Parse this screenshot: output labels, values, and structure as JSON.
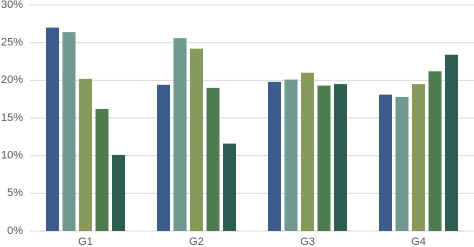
{
  "chart_data": {
    "type": "bar",
    "categories": [
      "G1",
      "G2",
      "G3",
      "G4"
    ],
    "series": [
      {
        "color": "#3b5d8c",
        "values": [
          27.0,
          19.4,
          19.8,
          18.1
        ]
      },
      {
        "color": "#6f9a8f",
        "values": [
          26.4,
          25.6,
          20.1,
          17.8
        ]
      },
      {
        "color": "#879a5c",
        "values": [
          20.2,
          24.2,
          21.0,
          19.5
        ]
      },
      {
        "color": "#4f7b50",
        "values": [
          16.2,
          19.0,
          19.3,
          21.2
        ]
      },
      {
        "color": "#2e5e51",
        "values": [
          10.1,
          11.6,
          19.5,
          23.4
        ]
      }
    ],
    "ylim": [
      0,
      30
    ],
    "yticks": [
      {
        "value": 0,
        "label": "0%"
      },
      {
        "value": 5,
        "label": "5%"
      },
      {
        "value": 10,
        "label": "10%"
      },
      {
        "value": 15,
        "label": "15%"
      },
      {
        "value": 20,
        "label": "20%"
      },
      {
        "value": 25,
        "label": "25%"
      },
      {
        "value": 30,
        "label": "30%"
      }
    ],
    "grid": true
  }
}
